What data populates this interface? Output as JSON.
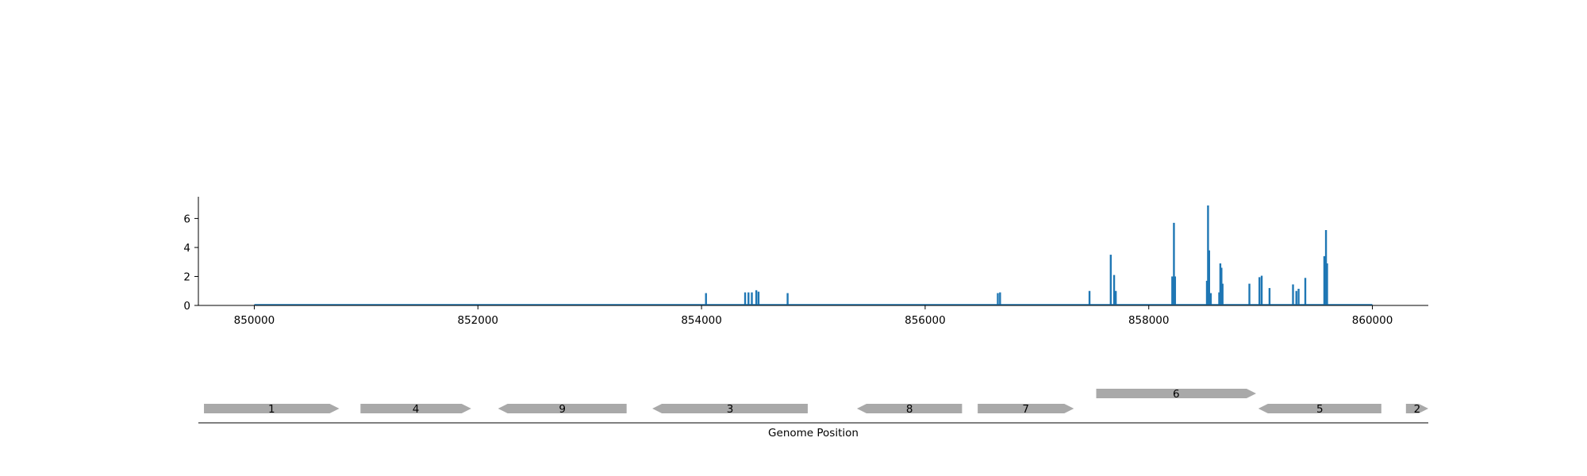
{
  "chart_data": [
    {
      "type": "bar",
      "title": "",
      "xlabel": "",
      "ylabel": "",
      "xlim": [
        849500,
        860500
      ],
      "ylim": [
        0,
        7.5
      ],
      "grid": false,
      "xticks": [
        {
          "value": 850000,
          "label": "850000"
        },
        {
          "value": 852000,
          "label": "852000"
        },
        {
          "value": 854000,
          "label": "854000"
        },
        {
          "value": 856000,
          "label": "856000"
        },
        {
          "value": 858000,
          "label": "858000"
        },
        {
          "value": 860000,
          "label": "860000"
        }
      ],
      "yticks": [
        {
          "value": 0,
          "label": "0"
        },
        {
          "value": 2,
          "label": "2"
        },
        {
          "value": 4,
          "label": "4"
        },
        {
          "value": 6,
          "label": "6"
        }
      ],
      "baseline_range": [
        850000,
        860000
      ],
      "color": "#1f77b4",
      "points": [
        {
          "x": 854040,
          "y": 0.85
        },
        {
          "x": 854390,
          "y": 0.9
        },
        {
          "x": 854420,
          "y": 0.9
        },
        {
          "x": 854450,
          "y": 0.9
        },
        {
          "x": 854490,
          "y": 1.05
        },
        {
          "x": 854510,
          "y": 0.95
        },
        {
          "x": 854770,
          "y": 0.85
        },
        {
          "x": 856650,
          "y": 0.85
        },
        {
          "x": 856670,
          "y": 0.9
        },
        {
          "x": 857470,
          "y": 1.0
        },
        {
          "x": 857660,
          "y": 3.5
        },
        {
          "x": 857690,
          "y": 2.1
        },
        {
          "x": 857705,
          "y": 1.0
        },
        {
          "x": 858210,
          "y": 2.0
        },
        {
          "x": 858225,
          "y": 5.7
        },
        {
          "x": 858235,
          "y": 2.0
        },
        {
          "x": 858520,
          "y": 1.7
        },
        {
          "x": 858530,
          "y": 6.9
        },
        {
          "x": 858540,
          "y": 3.8
        },
        {
          "x": 858555,
          "y": 0.85
        },
        {
          "x": 858630,
          "y": 0.9
        },
        {
          "x": 858640,
          "y": 2.9
        },
        {
          "x": 858650,
          "y": 2.6
        },
        {
          "x": 858660,
          "y": 1.5
        },
        {
          "x": 858900,
          "y": 1.5
        },
        {
          "x": 858990,
          "y": 1.95
        },
        {
          "x": 859010,
          "y": 2.05
        },
        {
          "x": 859080,
          "y": 1.2
        },
        {
          "x": 859290,
          "y": 1.45
        },
        {
          "x": 859320,
          "y": 1.0
        },
        {
          "x": 859340,
          "y": 1.15
        },
        {
          "x": 859400,
          "y": 1.9
        },
        {
          "x": 859570,
          "y": 3.4
        },
        {
          "x": 859585,
          "y": 5.2
        },
        {
          "x": 859595,
          "y": 2.9
        }
      ]
    },
    {
      "type": "gene-track",
      "xlabel": "Genome Position",
      "xlim": [
        849500,
        860500
      ],
      "color": "#a9a9a9",
      "genes": [
        {
          "label": "1",
          "start": 849550,
          "end": 850760,
          "strand": "+",
          "row": 0
        },
        {
          "label": "4",
          "start": 850950,
          "end": 851940,
          "strand": "+",
          "row": 0
        },
        {
          "label": "9",
          "start": 852180,
          "end": 853330,
          "strand": "-",
          "row": 0
        },
        {
          "label": "3",
          "start": 853560,
          "end": 854950,
          "strand": "-",
          "row": 0
        },
        {
          "label": "8",
          "start": 855390,
          "end": 856330,
          "strand": "-",
          "row": 0
        },
        {
          "label": "7",
          "start": 856470,
          "end": 857330,
          "strand": "+",
          "row": 0
        },
        {
          "label": "6",
          "start": 857530,
          "end": 858960,
          "strand": "+",
          "row": 1
        },
        {
          "label": "5",
          "start": 858980,
          "end": 860080,
          "strand": "-",
          "row": 0
        },
        {
          "label": "2",
          "start": 860300,
          "end": 860500,
          "strand": "+",
          "row": 0
        }
      ]
    }
  ]
}
